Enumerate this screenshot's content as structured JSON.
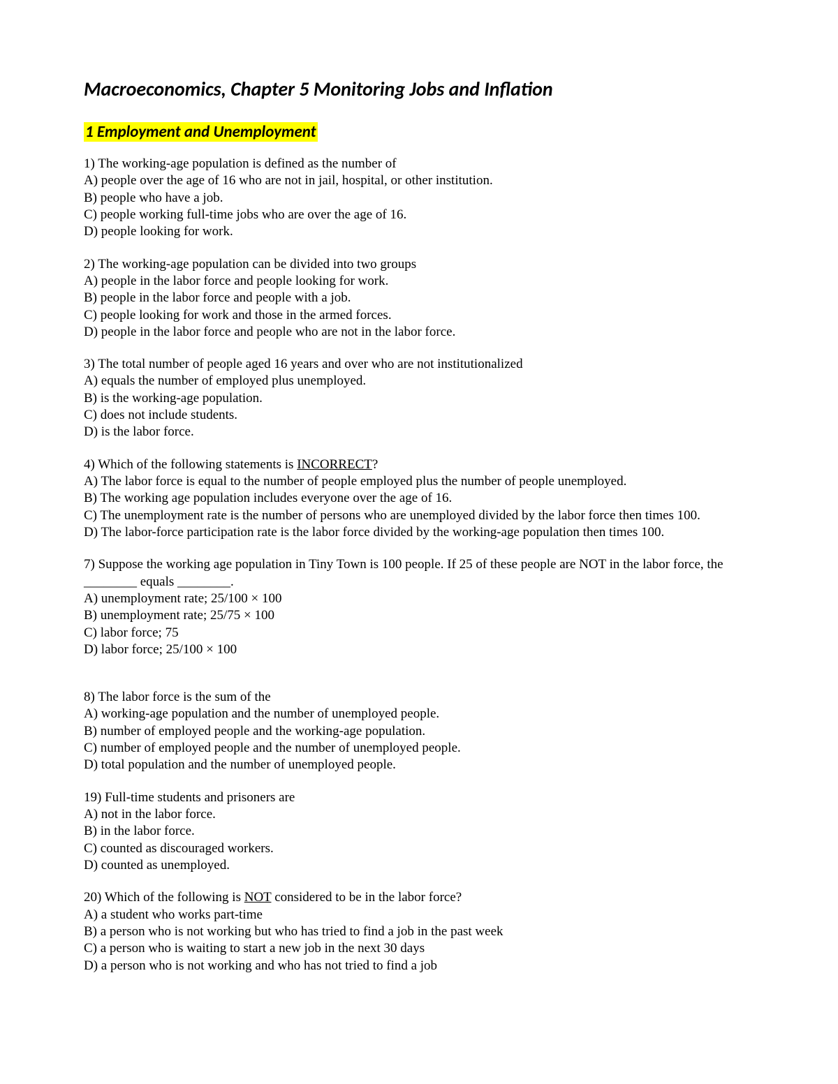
{
  "colors": {
    "background": "#ffffff",
    "text": "#000000",
    "highlight": "#ffff00"
  },
  "typography": {
    "title_font": "Calibri",
    "body_font": "Georgia",
    "title_size_pt": 21,
    "section_size_pt": 17,
    "body_size_pt": 14
  },
  "title": "Macroeconomics, Chapter 5   Monitoring Jobs and Inflation",
  "section": "1  Employment and Unemployment",
  "questions": [
    {
      "num": "1",
      "stem": "1) The working-age population is defined as the number of",
      "options": [
        "A) people over the age of 16 who are not in jail, hospital, or other institution.",
        "B) people who have a job.",
        "C) people working full-time jobs who are over the age of 16.",
        "D) people looking for work."
      ]
    },
    {
      "num": "2",
      "stem": "2) The working-age population can be divided into two groups",
      "options": [
        "A) people in the labor force and people looking for work.",
        "B) people in the labor force and people with a job.",
        "C) people looking for work and those in the armed forces.",
        "D) people in the labor force and people who are not in the labor force."
      ]
    },
    {
      "num": "3",
      "stem": "3) The total number of people aged 16 years and over who are not institutionalized",
      "options": [
        "A) equals the number of employed plus unemployed.",
        "B) is the working-age population.",
        "C) does not include students.",
        "D) is the labor force."
      ]
    },
    {
      "num": "4",
      "stem_pre": "4) Which of the following statements is ",
      "stem_underline": "INCORRECT",
      "stem_post": "?",
      "options": [
        "A) The labor force is equal to the number of people employed plus the number of people unemployed.",
        "B) The working age population includes everyone over the age of 16.",
        "C) The unemployment rate is the number of persons who are unemployed divided by the labor force then times 100.",
        "D) The labor-force participation rate is the labor force divided by the working-age population then times 100."
      ]
    },
    {
      "num": "7",
      "stem": "7) Suppose the working age population in Tiny Town is 100 people. If 25 of these people are NOT in the labor force, the ________ equals ________.",
      "options": [
        "A) unemployment rate; 25/100 × 100",
        "B) unemployment rate; 25/75 × 100",
        "C) labor force; 75",
        "D) labor force; 25/100 × 100"
      ]
    },
    {
      "num": "8",
      "stem": "8) The labor force is the sum of the",
      "options": [
        "A) working-age population and the number of unemployed people.",
        "B) number of employed people and the working-age population.",
        "C) number of employed people and the number of unemployed people.",
        "D) total population and the number of unemployed people."
      ]
    },
    {
      "num": "19",
      "stem": "19) Full-time students and prisoners are",
      "options": [
        "A) not in the labor force.",
        "B) in the labor force.",
        "C) counted as discouraged workers.",
        "D) counted as unemployed."
      ]
    },
    {
      "num": "20",
      "stem_pre": "20) Which of the following is ",
      "stem_underline": "NOT",
      "stem_post": " considered to be in the labor force?",
      "options": [
        "A) a student who works part-time",
        "B) a person who is not working but who has tried to find a job in the past week",
        "C) a person who is waiting to start a new job in the next 30 days",
        "D) a person who is not working and who has not tried to find a job"
      ]
    }
  ]
}
